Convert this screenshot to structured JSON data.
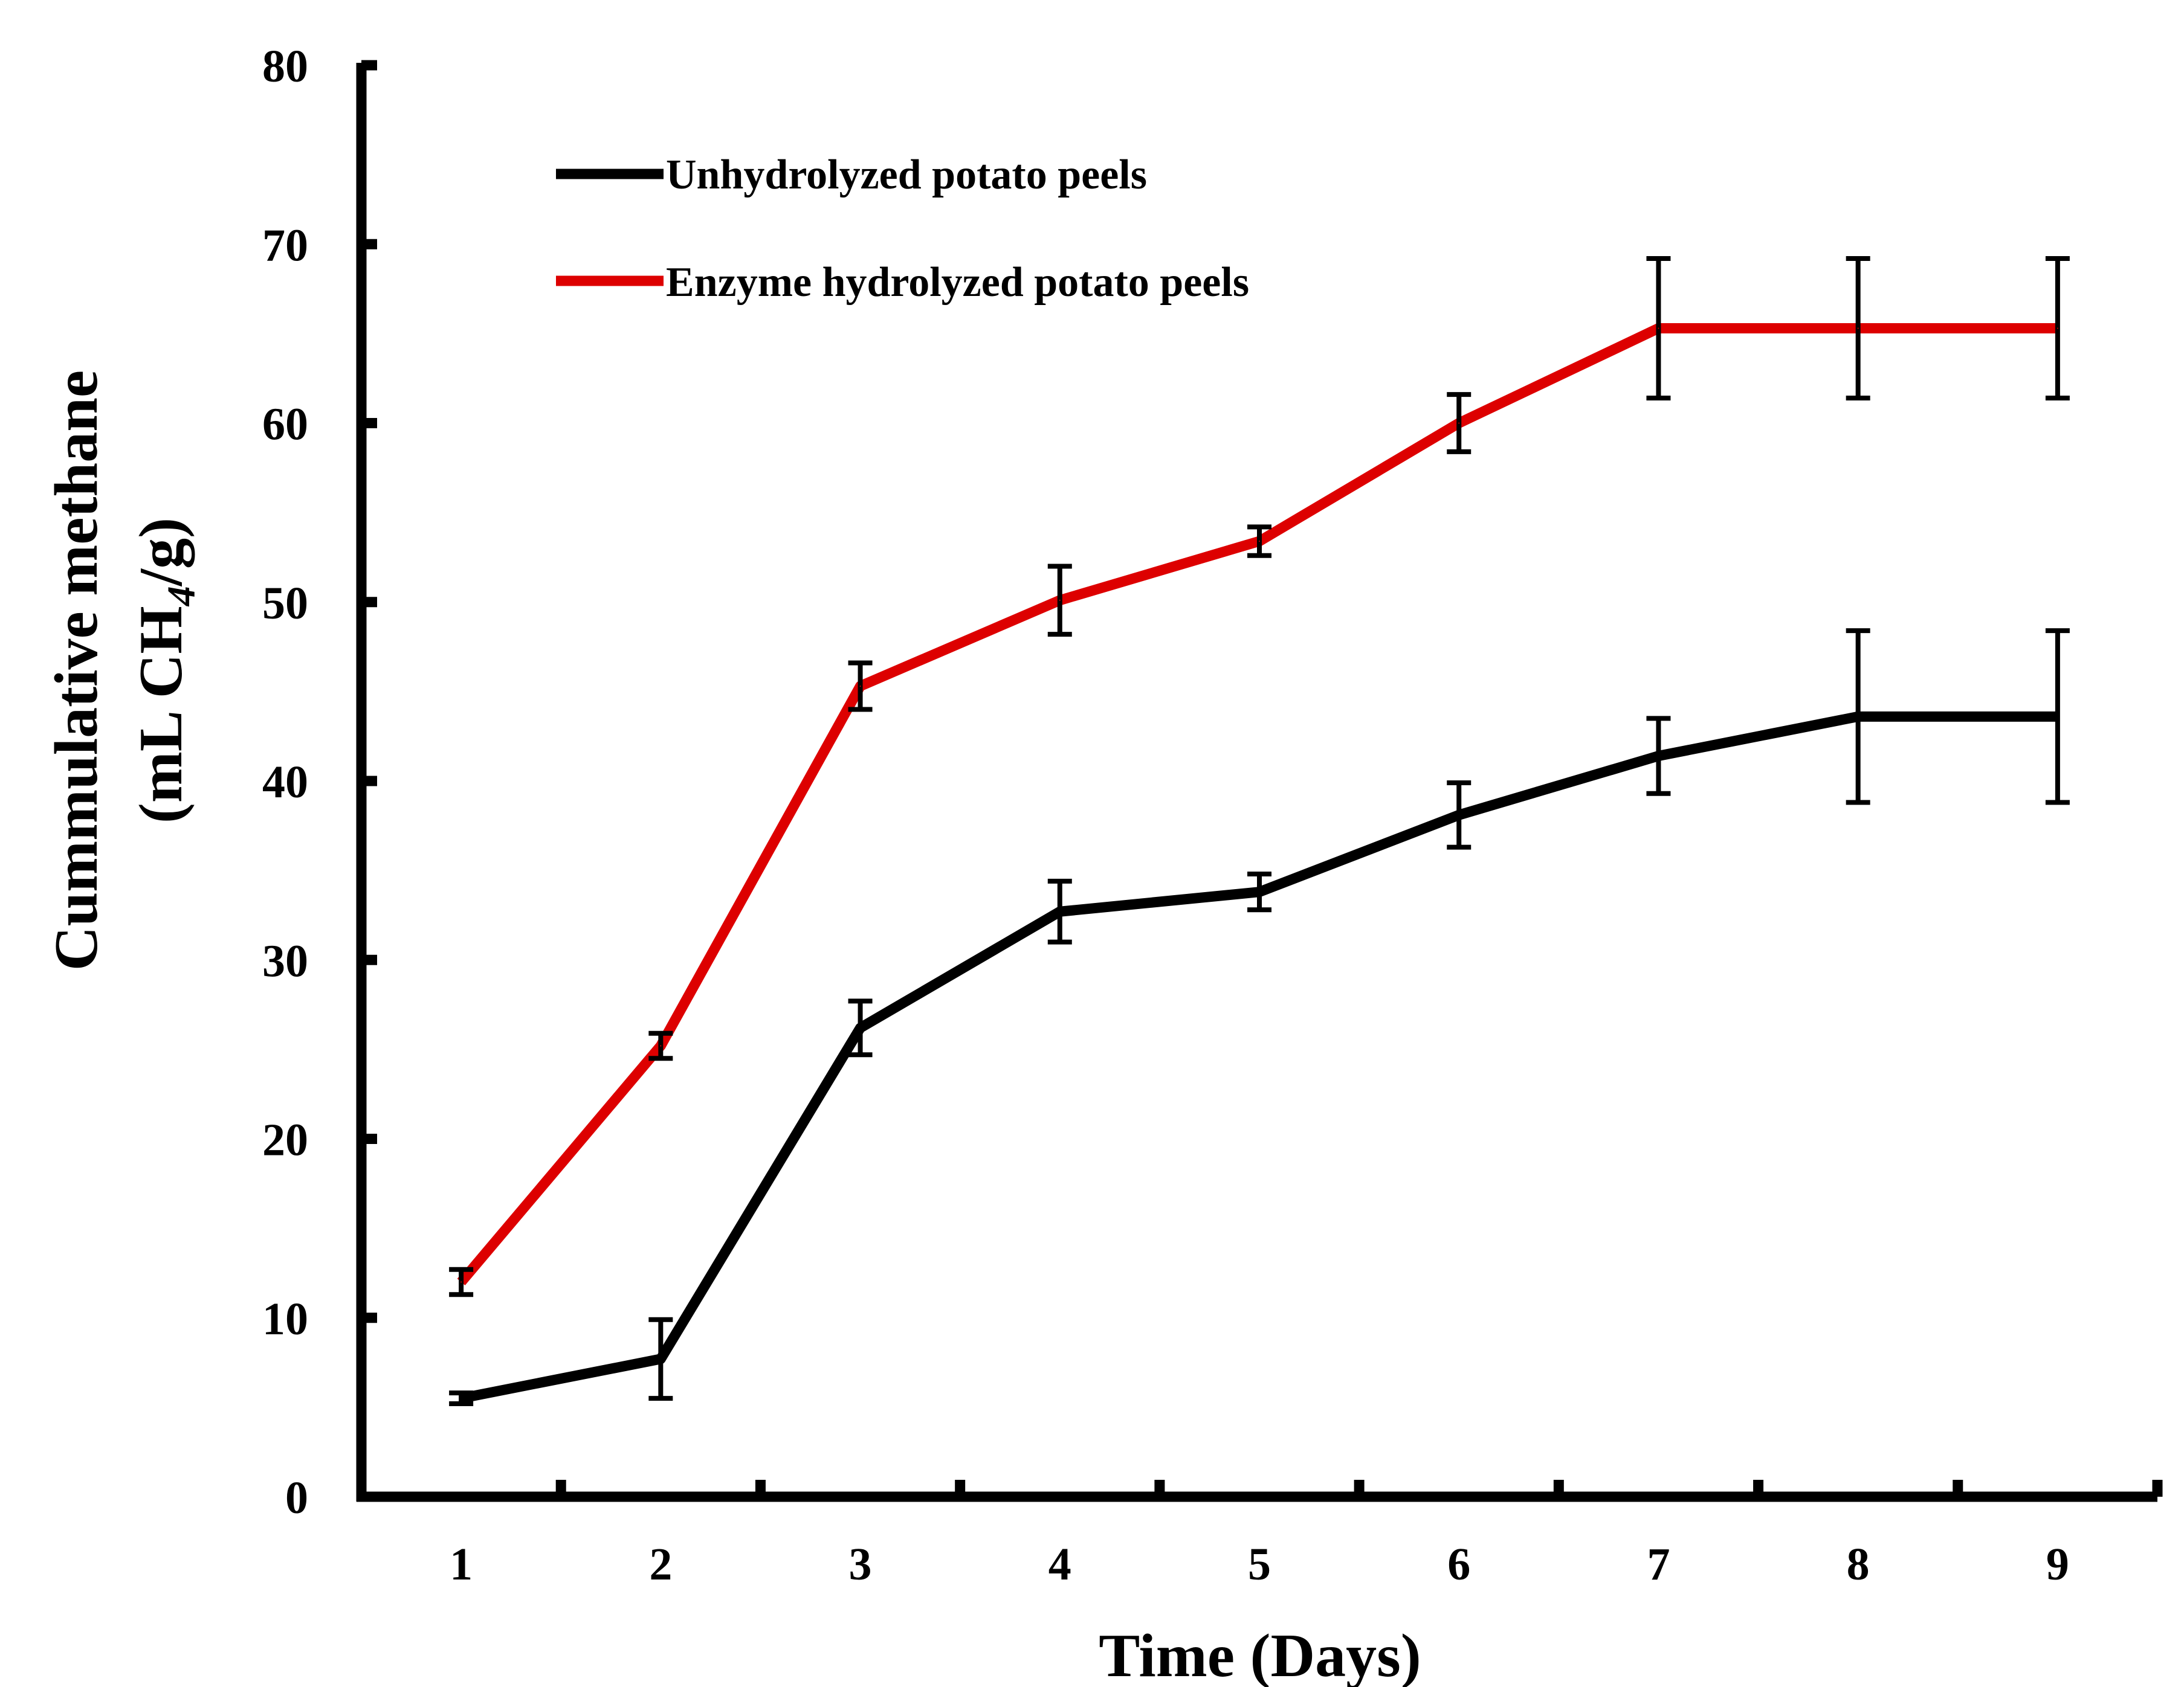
{
  "chart_data": {
    "type": "line",
    "title": "",
    "xlabel": "Time (Days)",
    "ylabel_line1": "Cummulative methane",
    "ylabel_line2_prefix": "(mL CH",
    "ylabel_subscript": "4",
    "ylabel_line2_suffix": "/g)",
    "x": [
      1,
      2,
      3,
      4,
      5,
      6,
      7,
      8,
      9
    ],
    "x_tick_labels": [
      "1",
      "2",
      "3",
      "4",
      "5",
      "6",
      "7",
      "8",
      "9"
    ],
    "xlim": [
      0.5,
      9.5
    ],
    "ylim": [
      0,
      80
    ],
    "y_ticks": [
      0,
      10,
      20,
      30,
      40,
      50,
      60,
      70,
      80
    ],
    "y_tick_labels": [
      "0",
      "10",
      "20",
      "30",
      "40",
      "50",
      "60",
      "70",
      "80"
    ],
    "grid": false,
    "legend_position": "top-left",
    "series": [
      {
        "name": "Unhydrolyzed potato peels",
        "color": "#000000",
        "values": [
          5.5,
          7.7,
          26.2,
          32.7,
          33.8,
          38.1,
          41.4,
          43.6,
          43.6
        ],
        "error": [
          0.3,
          2.2,
          1.5,
          1.7,
          1.0,
          1.8,
          2.1,
          4.8,
          4.8
        ]
      },
      {
        "name": "Enzyme hydrolyzed potato peels",
        "color": "#dd0000",
        "values": [
          12.0,
          25.2,
          45.3,
          50.1,
          53.4,
          60.0,
          65.3,
          65.3,
          65.3
        ],
        "error": [
          0.7,
          0.7,
          1.3,
          1.9,
          0.8,
          1.6,
          3.9,
          3.9,
          3.9
        ]
      }
    ]
  }
}
